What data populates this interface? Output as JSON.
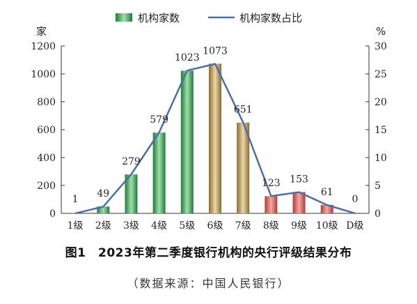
{
  "chart_data": {
    "type": "bar",
    "categories": [
      "1级",
      "2级",
      "3级",
      "4级",
      "5级",
      "6级",
      "7级",
      "8级",
      "9级",
      "10级",
      "D级"
    ],
    "series": [
      {
        "name": "机构家数",
        "type": "bar",
        "axis": "left",
        "values": [
          1,
          49,
          279,
          579,
          1023,
          1073,
          651,
          123,
          153,
          61,
          0
        ]
      },
      {
        "name": "机构家数占比",
        "type": "line",
        "axis": "right",
        "values": [
          0.0,
          1.2,
          7.0,
          14.5,
          25.6,
          26.8,
          16.3,
          3.1,
          3.8,
          1.5,
          0.0
        ]
      }
    ],
    "data_labels": [
      "1",
      "49",
      "279",
      "579",
      "1023",
      "1073",
      "651",
      "123",
      "153",
      "61",
      "0"
    ],
    "y_left": {
      "unit": "家",
      "ylim": [
        0,
        1200
      ],
      "ticks": [
        "0",
        "200",
        "400",
        "600",
        "800",
        "1000",
        "1200"
      ]
    },
    "y_right": {
      "unit": "%",
      "ylim": [
        0,
        30
      ],
      "ticks": [
        "0",
        "5",
        "10",
        "15",
        "20",
        "25",
        "30"
      ]
    },
    "legend_position": "top-center",
    "grid": false
  },
  "colors": {
    "green_bar": "#2e9e4f",
    "gold_bar": "#b08d4e",
    "red_bar": "#d9534f",
    "line": "#4a6fa5",
    "axis": "#333333"
  },
  "bar_color_groups": [
    "green",
    "green",
    "green",
    "green",
    "green",
    "gold",
    "gold",
    "red",
    "red",
    "red",
    "red"
  ],
  "caption": {
    "title": "图1　2023年第二季度银行机构的央行评级结果分布",
    "source": "（数据来源：中国人民银行）"
  }
}
